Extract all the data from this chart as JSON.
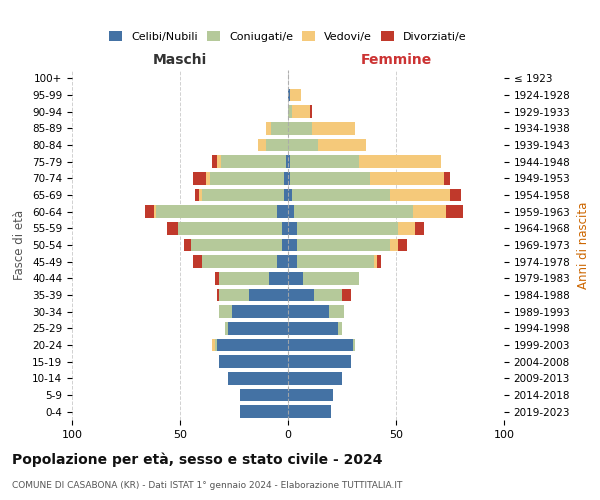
{
  "age_groups": [
    "0-4",
    "5-9",
    "10-14",
    "15-19",
    "20-24",
    "25-29",
    "30-34",
    "35-39",
    "40-44",
    "45-49",
    "50-54",
    "55-59",
    "60-64",
    "65-69",
    "70-74",
    "75-79",
    "80-84",
    "85-89",
    "90-94",
    "95-99",
    "100+"
  ],
  "birth_years": [
    "2019-2023",
    "2014-2018",
    "2009-2013",
    "2004-2008",
    "1999-2003",
    "1994-1998",
    "1989-1993",
    "1984-1988",
    "1979-1983",
    "1974-1978",
    "1969-1973",
    "1964-1968",
    "1959-1963",
    "1954-1958",
    "1949-1953",
    "1944-1948",
    "1939-1943",
    "1934-1938",
    "1929-1933",
    "1924-1928",
    "≤ 1923"
  ],
  "maschi": {
    "celibi": [
      22,
      22,
      28,
      32,
      33,
      28,
      26,
      18,
      9,
      5,
      3,
      3,
      5,
      2,
      2,
      1,
      0,
      0,
      0,
      0,
      0
    ],
    "coniugati": [
      0,
      0,
      0,
      0,
      1,
      1,
      6,
      14,
      23,
      35,
      42,
      48,
      56,
      38,
      34,
      30,
      10,
      8,
      0,
      0,
      0
    ],
    "vedovi": [
      0,
      0,
      0,
      0,
      1,
      0,
      0,
      0,
      0,
      0,
      0,
      0,
      1,
      1,
      2,
      2,
      4,
      2,
      0,
      0,
      0
    ],
    "divorziati": [
      0,
      0,
      0,
      0,
      0,
      0,
      0,
      1,
      2,
      4,
      3,
      5,
      4,
      2,
      6,
      2,
      0,
      0,
      0,
      0,
      0
    ]
  },
  "femmine": {
    "nubili": [
      20,
      21,
      25,
      29,
      30,
      23,
      19,
      12,
      7,
      4,
      4,
      4,
      3,
      2,
      1,
      1,
      0,
      0,
      0,
      1,
      0
    ],
    "coniugate": [
      0,
      0,
      0,
      0,
      1,
      2,
      7,
      13,
      26,
      36,
      43,
      47,
      55,
      45,
      37,
      32,
      14,
      11,
      2,
      0,
      0
    ],
    "vedove": [
      0,
      0,
      0,
      0,
      0,
      0,
      0,
      0,
      0,
      1,
      4,
      8,
      15,
      28,
      34,
      38,
      22,
      20,
      8,
      5,
      0
    ],
    "divorziate": [
      0,
      0,
      0,
      0,
      0,
      0,
      0,
      4,
      0,
      2,
      4,
      4,
      8,
      5,
      3,
      0,
      0,
      0,
      1,
      0,
      0
    ]
  },
  "colors": {
    "celibi": "#4472a4",
    "coniugati": "#b5c99a",
    "vedovi": "#f5c97a",
    "divorziati": "#c0392b"
  },
  "xlim": 100,
  "title": "Popolazione per età, sesso e stato civile - 2024",
  "subtitle": "COMUNE DI CASABONA (KR) - Dati ISTAT 1° gennaio 2024 - Elaborazione TUTTITALIA.IT",
  "ylabel_left": "Fasce di età",
  "ylabel_right": "Anni di nascita",
  "xlabel_left": "Maschi",
  "xlabel_right": "Femmine",
  "background_color": "#ffffff",
  "grid_color": "#cccccc"
}
